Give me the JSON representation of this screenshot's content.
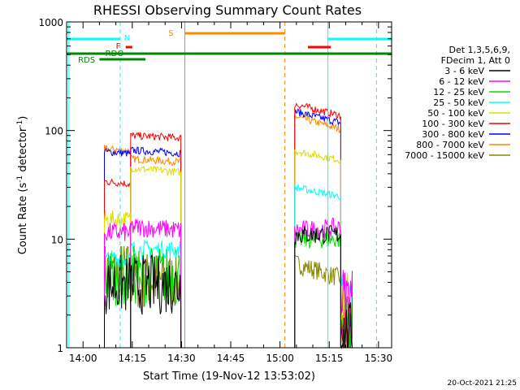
{
  "chart_data": {
    "type": "line",
    "title": "RHESSI Observing Summary Count Rates",
    "xlabel": "Start Time (19-Nov-12 13:53:02)",
    "ylabel_main": "Count Rate (s",
    "ylabel_sup1": "-1",
    "ylabel_mid": " detector",
    "ylabel_sup2": "-1",
    "ylabel_end": ")",
    "y_scale": "log",
    "ylim": [
      1,
      1000
    ],
    "xlim_minutes": [
      -5.0,
      34.0
    ],
    "x_ticks": [
      {
        "label": "14:00",
        "m": 0
      },
      {
        "label": "14:15",
        "m": 15
      },
      {
        "label": "14:30",
        "m": 30
      },
      {
        "label": "14:45",
        "m": 45
      },
      {
        "label": "15:00",
        "m": 60
      },
      {
        "label": "15:15",
        "m": 75
      },
      {
        "label": "15:30",
        "m": 90
      }
    ],
    "y_ticks": [
      {
        "label": "1",
        "v": 1
      },
      {
        "label": "10",
        "v": 10
      },
      {
        "label": "100",
        "v": 100
      },
      {
        "label": "1000",
        "v": 1000
      }
    ],
    "legend_header": [
      "Det 1,3,5,6,9,",
      "FDecim 1, Att 0"
    ],
    "series": [
      {
        "name": "3 - 6 keV",
        "color": "#000000"
      },
      {
        "name": "6 - 12 keV",
        "color": "#ff00ff"
      },
      {
        "name": "12 - 25 keV",
        "color": "#00dd00"
      },
      {
        "name": "25 - 50 keV",
        "color": "#00ffff"
      },
      {
        "name": "50 - 100 keV",
        "color": "#dddd00"
      },
      {
        "name": "100 - 300 keV",
        "color": "#ff0000"
      },
      {
        "name": "300 - 800 keV",
        "color": "#0000ff"
      },
      {
        "name": "800 - 7000 keV",
        "color": "#ff8800"
      },
      {
        "name": "7000 - 15000 keV",
        "color": "#888800"
      }
    ],
    "segments": [
      {
        "start": 6.5,
        "end": 14.5,
        "levels": [
          3.8,
          11.5,
          4.6,
          6.5,
          15.0,
          34.0,
          64.0,
          68.0,
          5.0
        ],
        "slope": [
          0,
          0,
          0,
          0,
          0,
          -0.15,
          -0.12,
          -0.12,
          0
        ]
      },
      {
        "start": 14.5,
        "end": 29.8,
        "levels": [
          3.8,
          13.0,
          4.6,
          8.0,
          45.0,
          90.0,
          66.0,
          55.0,
          4.2
        ],
        "slope": [
          0,
          -0.1,
          0,
          0,
          -0.12,
          -0.07,
          -0.09,
          -0.1,
          0
        ]
      },
      {
        "start": 64.5,
        "end": 78.5,
        "levels": [
          11.0,
          12.0,
          10.0,
          30.0,
          65.0,
          175.0,
          150.0,
          135.0,
          6.0
        ],
        "slope": [
          0,
          0.1,
          0,
          -0.3,
          -0.3,
          -0.38,
          -0.38,
          -0.42,
          -0.5
        ]
      },
      {
        "start": 78.5,
        "end": 82.0,
        "levels": [
          1.4,
          3.0,
          1.6,
          3.0,
          2.8,
          1.2,
          1.2,
          1.2,
          2.2
        ],
        "slope": [
          0,
          0,
          0,
          0,
          0,
          0,
          0,
          0,
          0
        ]
      }
    ],
    "annotations": [
      {
        "label": "N",
        "color": "#00ffff"
      },
      {
        "label": "F",
        "color": "#ff0000"
      },
      {
        "label": "RDO",
        "color": "#008800"
      },
      {
        "label": "RDS",
        "color": "#008800"
      },
      {
        "label": "S",
        "color": "#ff8800"
      }
    ],
    "footer_timestamp": "20-Oct-2021 21:25"
  }
}
